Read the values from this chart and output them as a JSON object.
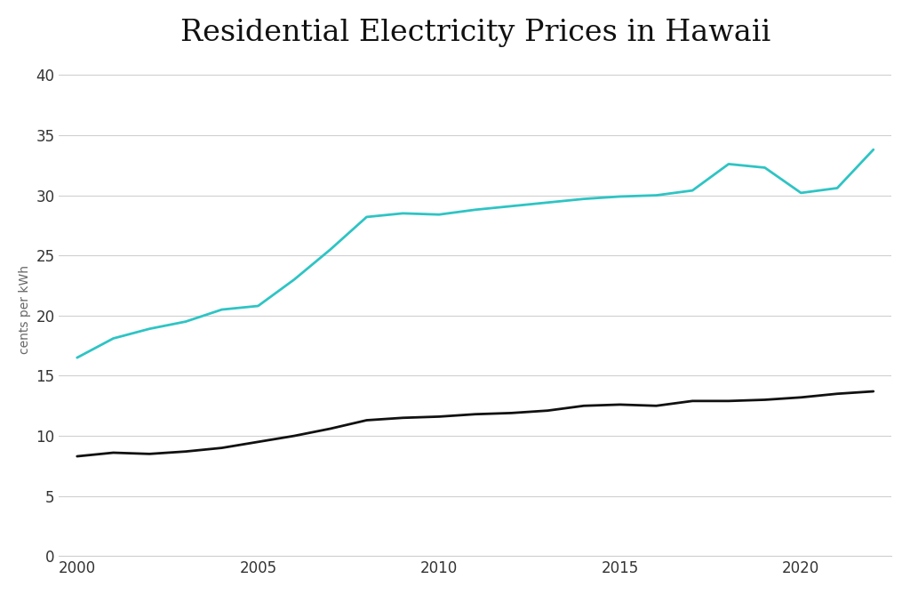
{
  "title": "Residential Electricity Prices in Hawaii",
  "ylabel": "cents per kWh",
  "background_color": "#ffffff",
  "grid_color": "#d0d0d0",
  "ylim": [
    0,
    41
  ],
  "yticks": [
    0,
    5,
    10,
    15,
    20,
    25,
    30,
    35,
    40
  ],
  "xlim": [
    1999.5,
    2022.5
  ],
  "xticks": [
    2000,
    2005,
    2010,
    2015,
    2020
  ],
  "hawaii_years": [
    2000,
    2001,
    2002,
    2003,
    2004,
    2005,
    2006,
    2007,
    2008,
    2009,
    2010,
    2011,
    2012,
    2013,
    2014,
    2015,
    2016,
    2017,
    2018,
    2019,
    2020,
    2021,
    2022
  ],
  "hawaii_values": [
    16.5,
    18.1,
    18.9,
    19.5,
    20.5,
    20.8,
    23.0,
    25.5,
    28.2,
    28.5,
    28.4,
    28.8,
    29.1,
    29.4,
    29.7,
    29.9,
    30.0,
    30.4,
    32.6,
    32.3,
    30.2,
    30.6,
    33.8
  ],
  "us_years": [
    2000,
    2001,
    2002,
    2003,
    2004,
    2005,
    2006,
    2007,
    2008,
    2009,
    2010,
    2011,
    2012,
    2013,
    2014,
    2015,
    2016,
    2017,
    2018,
    2019,
    2020,
    2021,
    2022
  ],
  "us_values": [
    8.3,
    8.6,
    8.5,
    8.7,
    9.0,
    9.5,
    10.0,
    10.6,
    11.3,
    11.5,
    11.6,
    11.8,
    11.9,
    12.1,
    12.5,
    12.6,
    12.5,
    12.9,
    12.9,
    13.0,
    13.2,
    13.5,
    13.7
  ],
  "hawaii_color": "#2ec4c4",
  "us_color": "#111111",
  "line_width": 2.0,
  "title_fontsize": 24,
  "label_fontsize": 10,
  "tick_fontsize": 12
}
